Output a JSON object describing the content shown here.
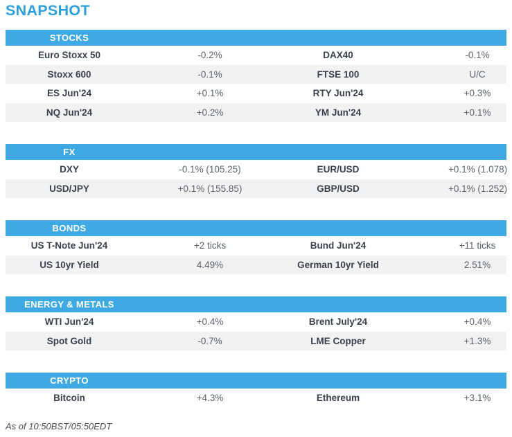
{
  "title": "SNAPSHOT",
  "footer": "As of 10:50BST/05:50EDT",
  "colors": {
    "accent": "#3fa9e4",
    "title": "#2d9fdb",
    "stripe": "#f2f2f2",
    "label_text": "#3a414e",
    "value_text": "#5b616c",
    "header_text": "#ffffff",
    "footer_text": "#474c55"
  },
  "sections": [
    {
      "header": "STOCKS",
      "rows": [
        [
          "Euro Stoxx 50",
          "-0.2%",
          "DAX40",
          "-0.1%"
        ],
        [
          "Stoxx 600",
          "-0.1%",
          "FTSE 100",
          "U/C"
        ],
        [
          "ES Jun'24",
          "+0.1%",
          "RTY Jun'24",
          "+0.3%"
        ],
        [
          "NQ Jun'24",
          "+0.2%",
          "YM Jun'24",
          "+0.1%"
        ]
      ]
    },
    {
      "header": "FX",
      "rows": [
        [
          "DXY",
          "-0.1% (105.25)",
          "EUR/USD",
          "+0.1% (1.078)"
        ],
        [
          "USD/JPY",
          "+0.1% (155.85)",
          "GBP/USD",
          "+0.1% (1.252)"
        ]
      ]
    },
    {
      "header": "BONDS",
      "rows": [
        [
          "US T-Note Jun'24",
          "+2 ticks",
          "Bund Jun'24",
          "+11 ticks"
        ],
        [
          "US 10yr Yield",
          "4.49%",
          "German 10yr Yield",
          "2.51%"
        ]
      ]
    },
    {
      "header": "ENERGY & METALS",
      "rows": [
        [
          "WTI Jun'24",
          "+0.4%",
          "Brent July'24",
          "+0.4%"
        ],
        [
          "Spot Gold",
          "-0.7%",
          "LME Copper",
          "+1.3%"
        ]
      ]
    },
    {
      "header": "CRYPTO",
      "rows": [
        [
          "Bitcoin",
          "+4.3%",
          "Ethereum",
          "+3.1%"
        ]
      ]
    }
  ]
}
